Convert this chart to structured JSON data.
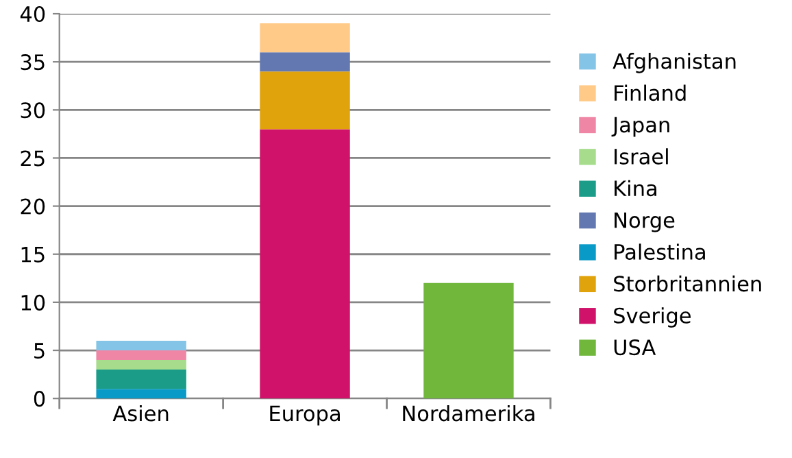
{
  "chart_data": {
    "type": "bar",
    "stacked": true,
    "categories": [
      "Asien",
      "Europa",
      "Nordamerika"
    ],
    "series": [
      {
        "name": "USA",
        "color": "#70b73c",
        "values": [
          0,
          0,
          12
        ]
      },
      {
        "name": "Sverige",
        "color": "#d0126b",
        "values": [
          0,
          28,
          0
        ]
      },
      {
        "name": "Storbritannien",
        "color": "#e1a30b",
        "values": [
          0,
          6,
          0
        ]
      },
      {
        "name": "Palestina",
        "color": "#0a9ac8",
        "values": [
          1,
          0,
          0
        ]
      },
      {
        "name": "Norge",
        "color": "#6378b0",
        "values": [
          0,
          2,
          0
        ]
      },
      {
        "name": "Kina",
        "color": "#1a9c89",
        "values": [
          2,
          0,
          0
        ]
      },
      {
        "name": "Israel",
        "color": "#a6dc8c",
        "values": [
          1,
          0,
          0
        ]
      },
      {
        "name": "Japan",
        "color": "#ef86a6",
        "values": [
          1,
          0,
          0
        ]
      },
      {
        "name": "Finland",
        "color": "#ffca87",
        "values": [
          0,
          3,
          0
        ]
      },
      {
        "name": "Afghanistan",
        "color": "#84c4e6",
        "values": [
          1,
          0,
          0
        ]
      }
    ],
    "ylim": [
      0,
      40
    ],
    "yticks": [
      0,
      5,
      10,
      15,
      20,
      25,
      30,
      35,
      40
    ],
    "grid": "y",
    "legend": "right"
  }
}
